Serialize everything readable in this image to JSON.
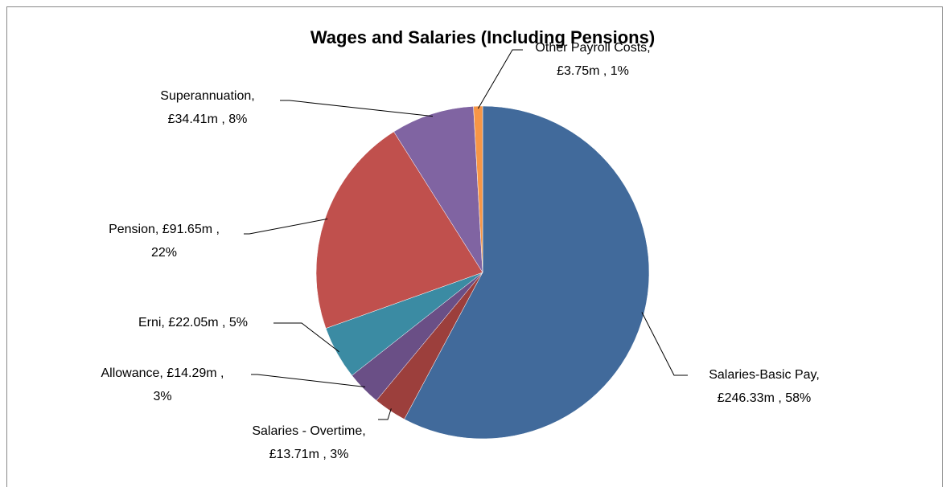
{
  "chart_data": {
    "type": "pie",
    "title": "Wages and Salaries (Including Pensions)",
    "values": [
      246.33,
      13.71,
      14.29,
      22.05,
      91.65,
      34.41,
      3.75
    ],
    "value_labels": [
      [
        "Salaries-Basic Pay,",
        "£246.33m , 58%"
      ],
      [
        "Salaries - Overtime,",
        "£13.71m , 3%"
      ],
      [
        "Allowance, £14.29m ,",
        "3%"
      ],
      [
        "Erni, £22.05m , 5%"
      ],
      [
        "Pension, £91.65m ,",
        "22%"
      ],
      [
        "Superannuation,",
        "£34.41m , 8%"
      ],
      [
        "Other Payroll Costs,",
        "£3.75m , 1%"
      ]
    ],
    "colors": [
      "#416a9b",
      "#9c3f3c",
      "#6a4f86",
      "#3b8ba3",
      "#c0504d",
      "#8064a2",
      "#f79646"
    ]
  }
}
